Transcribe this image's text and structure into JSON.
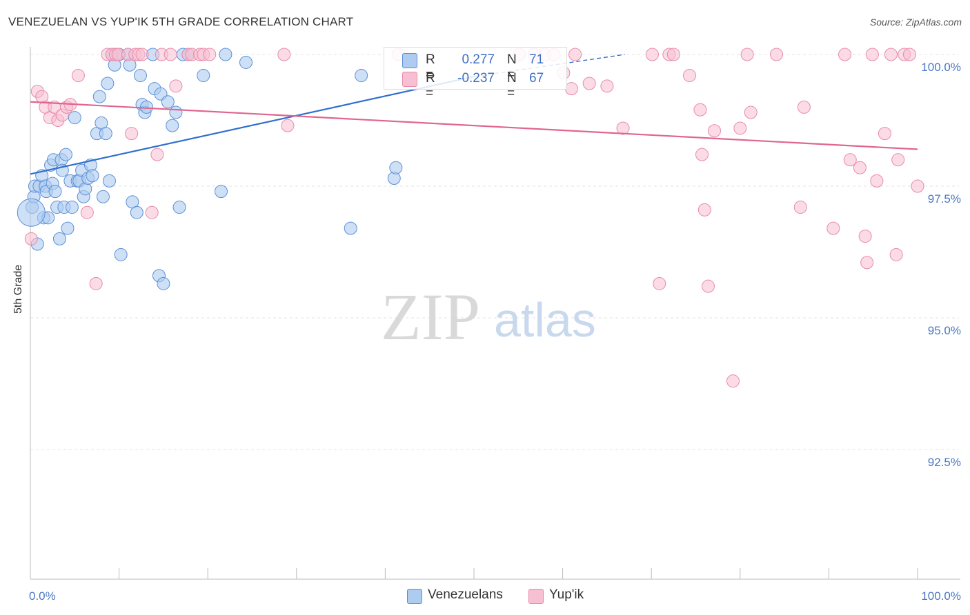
{
  "title": "VENEZUELAN VS YUP'IK 5TH GRADE CORRELATION CHART",
  "source": "Source: ZipAtlas.com",
  "watermark": {
    "zip": "ZIP",
    "atlas": "atlas"
  },
  "legend": {
    "r_label": "R =",
    "n_label": "N =",
    "rows": [
      {
        "name": "Venezuelans",
        "r": "0.277",
        "n": "71"
      },
      {
        "name": "Yup'ik",
        "r": "-0.237",
        "n": "67"
      }
    ]
  },
  "colors": {
    "venezuelans_fill": "#aecbf0",
    "venezuelans_stroke": "#5b8fd6",
    "venezuelans_line": "#2f6fcf",
    "yupik_fill": "#f7c0d2",
    "yupik_stroke": "#e88aa8",
    "yupik_line": "#e0658f",
    "tick": "#4a78c2",
    "grid": "#e3e3e3"
  },
  "chart_data": {
    "type": "scatter",
    "title": "VENEZUELAN VS YUP'IK 5TH GRADE CORRELATION CHART",
    "xlabel": "",
    "ylabel": "5th Grade",
    "xlim": [
      0,
      100
    ],
    "ylim": [
      90.0,
      100.25
    ],
    "x_ticks": [
      {
        "value": 0,
        "label": "0.0%"
      },
      {
        "value": 100,
        "label": "100.0%"
      }
    ],
    "y_ticks": [
      {
        "value": 100.0,
        "label": "100.0%"
      },
      {
        "value": 97.5,
        "label": "97.5%"
      },
      {
        "value": 95.0,
        "label": "95.0%"
      },
      {
        "value": 92.5,
        "label": "92.5%"
      }
    ],
    "series": [
      {
        "name": "Venezuelans",
        "r": 0.277,
        "n": 71,
        "trend": {
          "x0": 0,
          "y0": 97.73,
          "x1": 50,
          "y1": 99.58,
          "dash_to_x": 67,
          "dash_to_y": 100.0
        },
        "points": [
          [
            0.2,
            97.1
          ],
          [
            0.4,
            97.3
          ],
          [
            0.5,
            97.5
          ],
          [
            0.8,
            96.4
          ],
          [
            1.0,
            97.5
          ],
          [
            1.3,
            97.7
          ],
          [
            1.5,
            96.9
          ],
          [
            1.7,
            97.5
          ],
          [
            1.8,
            97.4
          ],
          [
            2.0,
            96.9
          ],
          [
            2.3,
            97.9
          ],
          [
            2.5,
            97.55
          ],
          [
            2.6,
            98.0
          ],
          [
            2.8,
            97.4
          ],
          [
            3.0,
            97.1
          ],
          [
            3.3,
            96.5
          ],
          [
            3.5,
            98.0
          ],
          [
            3.6,
            97.8
          ],
          [
            3.8,
            97.1
          ],
          [
            4.0,
            98.1
          ],
          [
            4.2,
            96.7
          ],
          [
            4.5,
            97.6
          ],
          [
            4.7,
            97.1
          ],
          [
            5.0,
            98.8
          ],
          [
            5.3,
            97.6
          ],
          [
            5.5,
            97.6
          ],
          [
            5.8,
            97.8
          ],
          [
            6.0,
            97.3
          ],
          [
            6.2,
            97.45
          ],
          [
            6.5,
            97.65
          ],
          [
            6.8,
            97.9
          ],
          [
            7.0,
            97.7
          ],
          [
            7.5,
            98.5
          ],
          [
            7.8,
            99.2
          ],
          [
            8.0,
            98.7
          ],
          [
            8.2,
            97.3
          ],
          [
            8.5,
            98.5
          ],
          [
            8.7,
            99.45
          ],
          [
            8.9,
            97.6
          ],
          [
            9.2,
            100.0
          ],
          [
            9.5,
            99.8
          ],
          [
            10.0,
            100.0
          ],
          [
            10.2,
            96.2
          ],
          [
            11.0,
            100.0
          ],
          [
            11.2,
            99.8
          ],
          [
            11.5,
            97.2
          ],
          [
            12.0,
            97.0
          ],
          [
            12.4,
            99.6
          ],
          [
            12.6,
            99.05
          ],
          [
            12.9,
            98.9
          ],
          [
            13.1,
            99.0
          ],
          [
            13.8,
            100.0
          ],
          [
            14.0,
            99.35
          ],
          [
            14.5,
            95.8
          ],
          [
            14.7,
            99.25
          ],
          [
            15.0,
            95.65
          ],
          [
            15.5,
            99.1
          ],
          [
            16.0,
            98.65
          ],
          [
            16.4,
            98.9
          ],
          [
            16.8,
            97.1
          ],
          [
            17.2,
            100.0
          ],
          [
            17.8,
            100.0
          ],
          [
            19.5,
            99.6
          ],
          [
            21.5,
            97.4
          ],
          [
            22.0,
            100.0
          ],
          [
            24.3,
            99.85
          ],
          [
            36.1,
            96.7
          ],
          [
            37.3,
            99.6
          ],
          [
            41.0,
            97.65
          ],
          [
            41.2,
            97.85
          ],
          [
            0.1,
            97.0
          ]
        ]
      },
      {
        "name": "Yup'ik",
        "r": -0.237,
        "n": 67,
        "trend": {
          "x0": 0,
          "y0": 99.1,
          "x1": 100,
          "y1": 98.2
        },
        "points": [
          [
            0.1,
            96.5
          ],
          [
            0.8,
            99.3
          ],
          [
            1.3,
            99.2
          ],
          [
            1.7,
            99.0
          ],
          [
            2.2,
            98.8
          ],
          [
            2.7,
            99.0
          ],
          [
            3.1,
            98.75
          ],
          [
            3.6,
            98.85
          ],
          [
            4.1,
            99.0
          ],
          [
            4.5,
            99.05
          ],
          [
            5.4,
            99.6
          ],
          [
            6.4,
            97.0
          ],
          [
            7.4,
            95.65
          ],
          [
            8.7,
            100.0
          ],
          [
            9.2,
            100.0
          ],
          [
            9.6,
            100.0
          ],
          [
            9.9,
            100.0
          ],
          [
            11.0,
            100.0
          ],
          [
            11.4,
            98.5
          ],
          [
            11.8,
            100.0
          ],
          [
            12.2,
            100.0
          ],
          [
            12.6,
            100.0
          ],
          [
            13.7,
            97.0
          ],
          [
            14.3,
            98.1
          ],
          [
            14.8,
            100.0
          ],
          [
            15.8,
            100.0
          ],
          [
            16.4,
            99.4
          ],
          [
            17.8,
            100.0
          ],
          [
            18.2,
            100.0
          ],
          [
            19.1,
            100.0
          ],
          [
            19.5,
            100.0
          ],
          [
            20.2,
            100.0
          ],
          [
            28.6,
            100.0
          ],
          [
            29.0,
            98.65
          ],
          [
            41.5,
            100.0
          ],
          [
            55.1,
            100.0
          ],
          [
            56.8,
            100.0
          ],
          [
            58.0,
            100.0
          ],
          [
            59.0,
            100.0
          ],
          [
            60.1,
            99.65
          ],
          [
            61.0,
            99.35
          ],
          [
            61.4,
            100.0
          ],
          [
            63.0,
            99.45
          ],
          [
            65.0,
            99.4
          ],
          [
            66.8,
            98.6
          ],
          [
            70.1,
            100.0
          ],
          [
            70.9,
            95.65
          ],
          [
            72.0,
            100.0
          ],
          [
            72.5,
            100.0
          ],
          [
            74.3,
            99.6
          ],
          [
            75.5,
            98.95
          ],
          [
            75.7,
            98.1
          ],
          [
            76.0,
            97.05
          ],
          [
            76.4,
            95.6
          ],
          [
            77.1,
            98.55
          ],
          [
            79.2,
            93.8
          ],
          [
            80.0,
            98.6
          ],
          [
            80.8,
            100.0
          ],
          [
            81.2,
            98.9
          ],
          [
            84.1,
            100.0
          ],
          [
            86.8,
            97.1
          ],
          [
            87.2,
            99.0
          ],
          [
            90.5,
            96.7
          ],
          [
            93.5,
            97.85
          ],
          [
            94.1,
            96.55
          ],
          [
            94.3,
            96.05
          ],
          [
            94.9,
            100.0
          ]
        ],
        "extra_points": [
          [
            95.4,
            97.6
          ],
          [
            96.3,
            98.5
          ],
          [
            97.0,
            100.0
          ],
          [
            97.6,
            96.2
          ],
          [
            97.8,
            98.0
          ],
          [
            98.5,
            100.0
          ],
          [
            99.1,
            100.0
          ],
          [
            100.0,
            97.5
          ],
          [
            91.8,
            100.0
          ],
          [
            92.4,
            98.0
          ]
        ]
      }
    ]
  }
}
